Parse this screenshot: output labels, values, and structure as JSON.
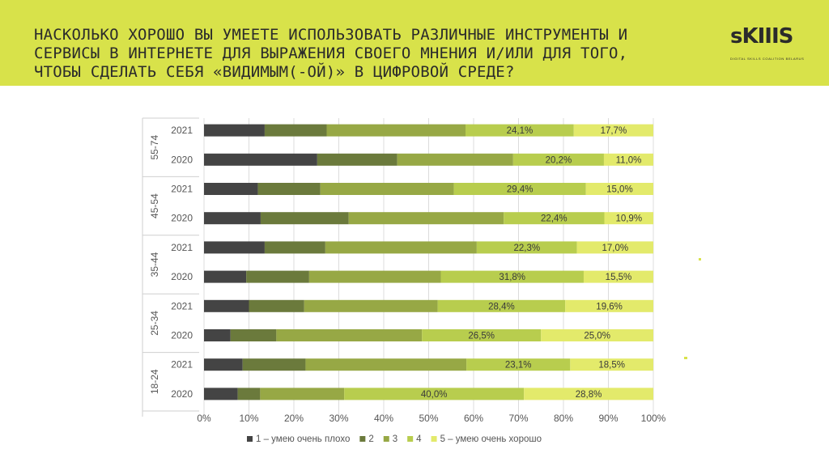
{
  "header": {
    "title_lines": [
      "НАСКОЛЬКО ХОРОШО ВЫ УМЕЕТЕ ИСПОЛЬЗОВАТЬ РАЗЛИЧНЫЕ ИНСТРУМЕНТЫ И",
      "СЕРВИСЫ В ИНТЕРНЕТЕ ДЛЯ ВЫРАЖЕНИЯ СВОЕГО МНЕНИЯ И/ИЛИ ДЛЯ ТОГО,",
      "ЧТОБЫ СДЕЛАТЬ СЕБЯ «ВИДИМЫМ(-ОЙ)» В ЦИФРОВОЙ СРЕДЕ?"
    ],
    "logo_text": "sKIIIS",
    "logo_tagline": "DIGITAL SKILLS COALITION BELARUS"
  },
  "colors": {
    "header_bg": "#d8e24a",
    "level1": "#444444",
    "level2": "#6b7a3c",
    "level3": "#97a845",
    "level4": "#b8cd4e",
    "level5": "#e3ea6b"
  },
  "chart_data": {
    "type": "bar",
    "orientation": "horizontal",
    "stacked": true,
    "percent_stacked": true,
    "title": "",
    "xlabel": "",
    "ylabel": "",
    "xlim": [
      0,
      100
    ],
    "x_ticks": [
      "0%",
      "10%",
      "20%",
      "30%",
      "40%",
      "50%",
      "60%",
      "70%",
      "80%",
      "90%",
      "100%"
    ],
    "legend_position": "bottom",
    "groups": [
      "55-74",
      "45-54",
      "35-44",
      "25-34",
      "18-24"
    ],
    "rows": [
      {
        "group": "55-74",
        "year": "2021"
      },
      {
        "group": "55-74",
        "year": "2020"
      },
      {
        "group": "45-54",
        "year": "2021"
      },
      {
        "group": "45-54",
        "year": "2020"
      },
      {
        "group": "35-44",
        "year": "2021"
      },
      {
        "group": "35-44",
        "year": "2020"
      },
      {
        "group": "25-34",
        "year": "2021"
      },
      {
        "group": "25-34",
        "year": "2020"
      },
      {
        "group": "18-24",
        "year": "2021"
      },
      {
        "group": "18-24",
        "year": "2020"
      }
    ],
    "series": [
      {
        "name": "1 – умею очень плохо",
        "values": [
          13.5,
          25.2,
          12.0,
          12.6,
          13.5,
          9.4,
          10.0,
          5.9,
          8.6,
          7.5
        ],
        "labels": [
          "",
          "",
          "",
          "",
          "",
          "",
          "",
          "",
          "",
          ""
        ]
      },
      {
        "name": "2",
        "values": [
          13.8,
          17.8,
          13.9,
          19.6,
          13.5,
          14.0,
          12.3,
          10.2,
          14.0,
          5.0
        ],
        "labels": [
          "",
          "",
          "",
          "",
          "",
          "",
          "",
          "",
          "",
          ""
        ]
      },
      {
        "name": "3",
        "values": [
          30.9,
          25.8,
          29.7,
          34.5,
          33.7,
          29.3,
          29.7,
          32.4,
          35.8,
          18.7
        ],
        "labels": [
          "",
          "",
          "",
          "",
          "",
          "",
          "",
          "",
          "",
          ""
        ]
      },
      {
        "name": "4",
        "values": [
          24.1,
          20.2,
          29.4,
          22.4,
          22.3,
          31.8,
          28.4,
          26.5,
          23.1,
          40.0
        ],
        "labels": [
          "24,1%",
          "20,2%",
          "29,4%",
          "22,4%",
          "22,3%",
          "31,8%",
          "28,4%",
          "26,5%",
          "23,1%",
          "40,0%"
        ]
      },
      {
        "name": "5 – умею очень хорошо",
        "values": [
          17.7,
          11.0,
          15.0,
          10.9,
          17.0,
          15.5,
          19.6,
          25.0,
          18.5,
          28.8
        ],
        "labels": [
          "17,7%",
          "11,0%",
          "15,0%",
          "10,9%",
          "17,0%",
          "15,5%",
          "19,6%",
          "25,0%",
          "18,5%",
          "28,8%"
        ]
      }
    ]
  }
}
